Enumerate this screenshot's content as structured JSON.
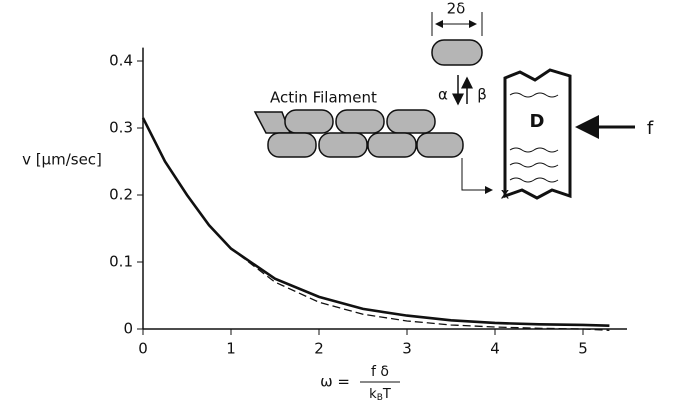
{
  "chart_data": {
    "type": "line",
    "y_label": "v [μm/sec]",
    "x_label": {
      "lhs": "ω =",
      "numerator": "f δ",
      "denominator": [
        "k",
        "B",
        "T"
      ]
    },
    "x": [
      0,
      0.25,
      0.5,
      0.75,
      1,
      1.5,
      2,
      2.5,
      3,
      3.5,
      4,
      4.5,
      5,
      5.3
    ],
    "series": [
      {
        "color": "#111111",
        "line_style": "solid",
        "values": [
          0.315,
          0.25,
          0.2,
          0.155,
          0.12,
          0.075,
          0.048,
          0.03,
          0.02,
          0.013,
          0.009,
          0.007,
          0.006,
          0.005
        ]
      },
      {
        "color": "#111111",
        "line_style": "dashed",
        "values": [
          0.315,
          0.25,
          0.2,
          0.155,
          0.12,
          0.07,
          0.04,
          0.022,
          0.012,
          0.006,
          0.003,
          0.001,
          0,
          -0.002
        ]
      }
    ],
    "xlim": [
      0,
      5.5
    ],
    "ylim": [
      0,
      0.42
    ],
    "xticks": [
      0,
      1,
      2,
      3,
      4,
      5
    ],
    "yticks": [
      0,
      0.1,
      0.2,
      0.3,
      0.4
    ],
    "annotations": {
      "filament": "Actin Filament",
      "width": "2δ",
      "alpha": "α",
      "beta": "β",
      "load": "D",
      "force": "f",
      "axis": "x"
    }
  }
}
